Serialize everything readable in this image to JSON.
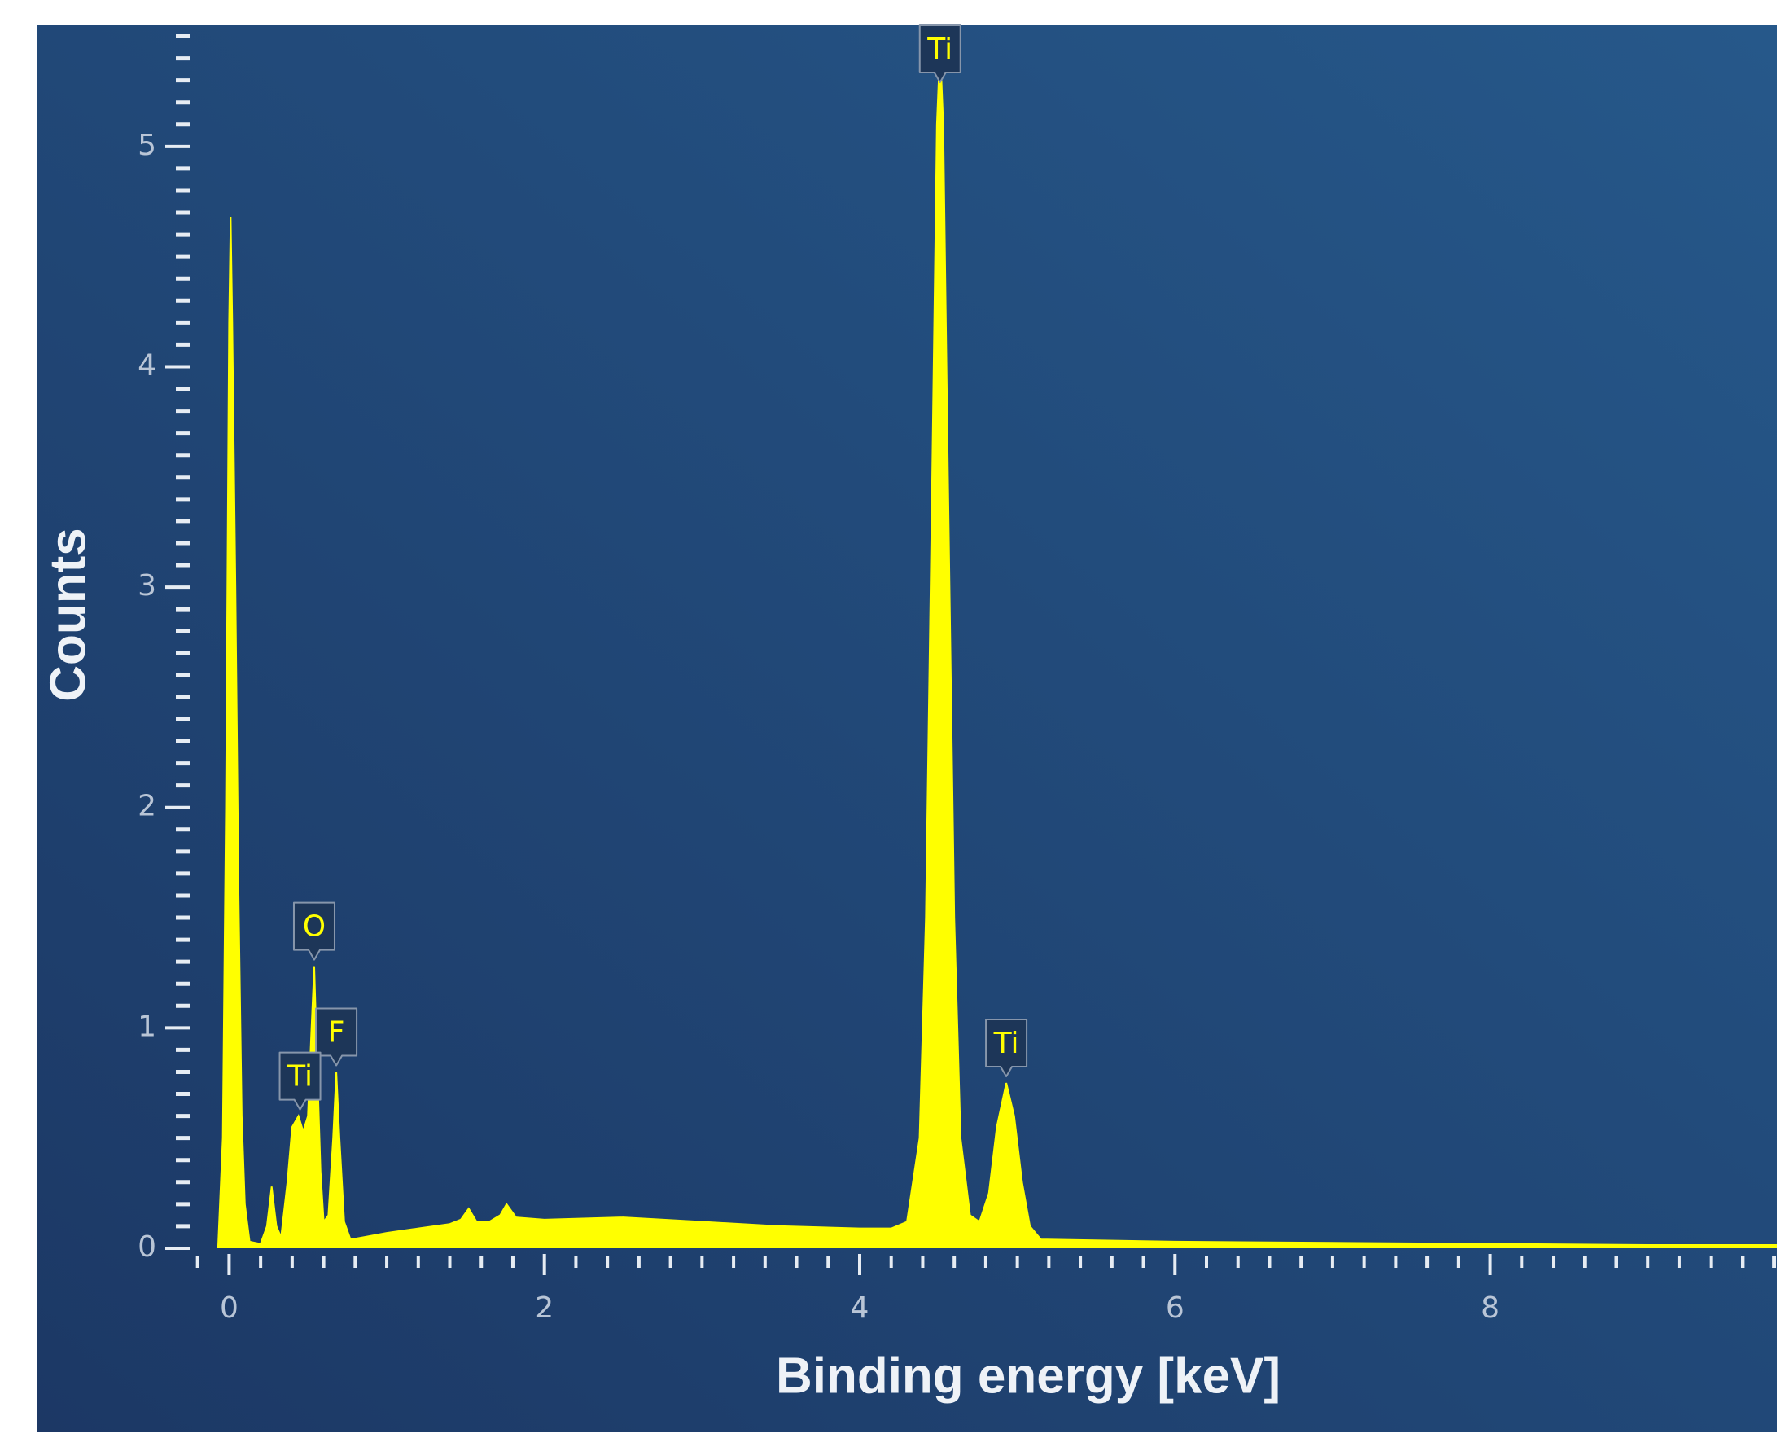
{
  "chart_data": {
    "type": "area",
    "xlabel": "Binding energy [keV]",
    "ylabel": "Counts",
    "x": [
      -0.07,
      -0.04,
      -0.02,
      0,
      0.01,
      0.02,
      0.04,
      0.06,
      0.08,
      0.1,
      0.13,
      0.2,
      0.24,
      0.27,
      0.3,
      0.33,
      0.37,
      0.4,
      0.44,
      0.47,
      0.5,
      0.52,
      0.54,
      0.56,
      0.58,
      0.6,
      0.63,
      0.66,
      0.68,
      0.7,
      0.73,
      0.77,
      0.85,
      1.0,
      1.2,
      1.4,
      1.47,
      1.52,
      1.57,
      1.65,
      1.72,
      1.76,
      1.82,
      2.0,
      2.5,
      3.0,
      3.5,
      4.0,
      4.2,
      4.3,
      4.38,
      4.42,
      4.46,
      4.49,
      4.51,
      4.53,
      4.56,
      4.6,
      4.64,
      4.7,
      4.76,
      4.82,
      4.87,
      4.93,
      4.98,
      5.03,
      5.08,
      5.15,
      6,
      7,
      8,
      9,
      9.82
    ],
    "values": [
      0,
      0.5,
      2.0,
      4.2,
      4.68,
      4.2,
      3.0,
      1.6,
      0.6,
      0.2,
      0.03,
      0.02,
      0.1,
      0.28,
      0.1,
      0.05,
      0.3,
      0.55,
      0.6,
      0.53,
      0.6,
      0.95,
      1.28,
      0.8,
      0.35,
      0.12,
      0.15,
      0.5,
      0.8,
      0.5,
      0.12,
      0.04,
      0.05,
      0.07,
      0.09,
      0.11,
      0.13,
      0.18,
      0.12,
      0.12,
      0.15,
      0.2,
      0.14,
      0.13,
      0.14,
      0.12,
      0.1,
      0.09,
      0.09,
      0.12,
      0.5,
      1.5,
      3.5,
      5.1,
      5.45,
      5.1,
      3.5,
      1.5,
      0.5,
      0.15,
      0.12,
      0.25,
      0.55,
      0.75,
      0.6,
      0.3,
      0.1,
      0.04,
      0.03,
      0.025,
      0.02,
      0.015,
      0.015
    ],
    "color": "#ffff00",
    "xlim": [
      -0.25,
      9.82
    ],
    "ylim": [
      0,
      5.55
    ],
    "xticks": [
      0,
      2,
      4,
      6,
      8
    ],
    "yticks": [
      0,
      1,
      2,
      3,
      4,
      5
    ],
    "xminorticks": [
      -0.2,
      0.2,
      0.4,
      0.6,
      0.8,
      1,
      1.2,
      1.4,
      1.6,
      1.8,
      2.2,
      2.4,
      2.6,
      2.8,
      3,
      3.2,
      3.4,
      3.6,
      3.8,
      4.2,
      4.4,
      4.6,
      4.8,
      5,
      5.2,
      5.4,
      5.6,
      5.8,
      6.2,
      6.4,
      6.6,
      6.8,
      7,
      7.2,
      7.4,
      7.6,
      7.8,
      8.2,
      8.4,
      8.6,
      8.8,
      9,
      9.2,
      9.4,
      9.6,
      9.8
    ],
    "yminorticks": [
      0.1,
      0.2,
      0.3,
      0.4,
      0.5,
      0.6,
      0.7,
      0.8,
      0.9,
      1.1,
      1.2,
      1.3,
      1.4,
      1.5,
      1.6,
      1.7,
      1.8,
      1.9,
      2.1,
      2.2,
      2.3,
      2.4,
      2.5,
      2.6,
      2.7,
      2.8,
      2.9,
      3.1,
      3.2,
      3.3,
      3.4,
      3.5,
      3.6,
      3.7,
      3.8,
      3.9,
      4.1,
      4.2,
      4.3,
      4.4,
      4.5,
      4.6,
      4.7,
      4.8,
      4.9,
      5.1,
      5.2,
      5.3,
      5.4,
      5.5
    ],
    "annotations": [
      {
        "text": "Ti",
        "x": 4.51,
        "y": 5.45
      },
      {
        "text": "O",
        "x": 0.54,
        "y": 1.28
      },
      {
        "text": "F",
        "x": 0.68,
        "y": 0.8
      },
      {
        "text": "Ti",
        "x": 0.45,
        "y": 0.6
      },
      {
        "text": "Ti",
        "x": 4.93,
        "y": 0.75
      }
    ]
  }
}
